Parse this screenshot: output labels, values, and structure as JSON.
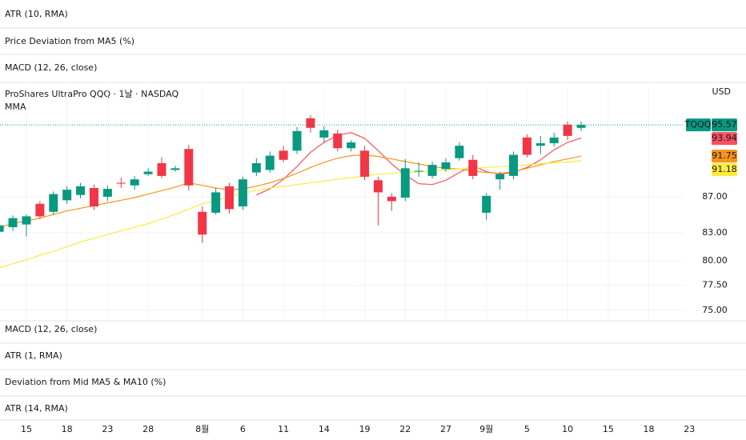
{
  "panes_above": [
    "ATR (10, RMA)",
    "Price Deviation from MA5 (%)",
    "MACD (12, 26, close)"
  ],
  "panes_below": [
    "MACD (12, 26, close)",
    "ATR (1, RMA)",
    "Deviation from Mid MA5 & MA10 (%)",
    "ATR (14, RMA)"
  ],
  "chart_data": {
    "type": "candlestick",
    "title": "ProShares UltraPro QQQ · 1날 · NASDAQ",
    "subtitle": "MMA",
    "currency": "USD",
    "symbol": "TQQQ",
    "x": [
      0,
      1,
      2,
      3,
      4,
      5,
      6,
      7,
      8,
      9,
      10,
      11,
      12,
      13,
      14,
      15,
      16,
      17,
      18,
      19,
      20,
      21,
      22,
      23,
      24,
      25,
      26,
      27,
      28,
      29,
      30,
      31,
      32,
      33,
      34,
      35,
      36,
      37,
      38,
      39,
      40,
      41,
      42,
      43
    ],
    "open": [
      83.1,
      83.6,
      83.9,
      86.2,
      85.3,
      86.6,
      87.2,
      88.0,
      87.0,
      88.6,
      88.3,
      89.6,
      90.9,
      90.1,
      92.6,
      85.3,
      85.2,
      88.2,
      85.9,
      89.8,
      90.1,
      92.4,
      92.4,
      96.4,
      94.0,
      94.5,
      92.7,
      92.4,
      88.9,
      87.0,
      86.9,
      89.9,
      89.4,
      90.2,
      91.5,
      91.3,
      85.2,
      89.0,
      89.4,
      94.0,
      93.0,
      93.3,
      95.6,
      95.2
    ],
    "high": [
      84.2,
      84.9,
      85.0,
      86.5,
      87.6,
      88.2,
      88.6,
      88.4,
      88.3,
      89.2,
      89.4,
      90.3,
      91.6,
      90.6,
      93.1,
      85.9,
      88.0,
      88.6,
      89.3,
      91.5,
      92.3,
      93.0,
      95.3,
      96.8,
      95.4,
      95.0,
      93.7,
      93.0,
      89.3,
      87.4,
      91.4,
      91.0,
      91.1,
      91.5,
      93.4,
      91.9,
      87.4,
      89.9,
      92.3,
      94.4,
      94.2,
      94.6,
      96.0,
      96.0
    ],
    "low": [
      82.8,
      83.2,
      82.6,
      84.5,
      85.0,
      86.2,
      86.8,
      85.5,
      86.5,
      88.0,
      87.8,
      89.4,
      89.1,
      89.9,
      87.7,
      81.9,
      85.0,
      85.1,
      85.5,
      89.4,
      89.8,
      91.0,
      92.0,
      94.6,
      93.4,
      92.3,
      92.3,
      88.9,
      83.8,
      85.4,
      86.5,
      89.3,
      89.1,
      89.9,
      91.2,
      89.0,
      84.4,
      87.8,
      89.0,
      91.6,
      92.0,
      92.9,
      93.7,
      94.8
    ],
    "close": [
      83.8,
      84.6,
      84.8,
      84.8,
      87.3,
      87.8,
      88.2,
      85.9,
      87.9,
      88.5,
      89.0,
      89.9,
      89.4,
      90.3,
      88.3,
      82.8,
      87.5,
      85.6,
      89.0,
      90.9,
      91.8,
      91.3,
      94.8,
      95.2,
      94.9,
      92.7,
      93.4,
      89.3,
      87.5,
      86.5,
      90.3,
      90.0,
      90.7,
      91.0,
      93.0,
      89.4,
      87.1,
      89.6,
      91.9,
      91.9,
      93.3,
      94.0,
      94.2,
      95.57
    ],
    "up_color": "#089981",
    "down_color": "#f23645",
    "series": [
      {
        "color": "#f7525f",
        "values": [
          null,
          null,
          null,
          null,
          null,
          null,
          null,
          null,
          null,
          null,
          null,
          null,
          null,
          null,
          null,
          null,
          null,
          null,
          null,
          87.2,
          87.9,
          89.0,
          90.5,
          92.2,
          93.4,
          94.3,
          94.6,
          93.9,
          92.4,
          90.8,
          89.5,
          88.5,
          88.4,
          88.9,
          89.8,
          90.6,
          89.9,
          89.6,
          89.8,
          90.4,
          91.3,
          92.5,
          93.4,
          93.94
        ]
      },
      {
        "color": "#f7931a",
        "values": [
          83.6,
          84.0,
          84.3,
          84.6,
          85.0,
          85.4,
          85.7,
          86.0,
          86.3,
          86.6,
          86.9,
          87.3,
          87.7,
          88.1,
          88.6,
          88.3,
          88.0,
          87.8,
          87.9,
          88.2,
          88.6,
          89.1,
          89.7,
          90.4,
          91.0,
          91.5,
          91.8,
          91.9,
          91.7,
          91.4,
          91.1,
          90.8,
          90.5,
          90.3,
          90.2,
          90.0,
          89.8,
          89.7,
          89.9,
          90.3,
          90.7,
          91.1,
          91.4,
          91.75
        ]
      },
      {
        "color": "#ffeb3b",
        "values": [
          79.3,
          79.7,
          80.1,
          80.6,
          81.0,
          81.5,
          82.0,
          82.4,
          82.8,
          83.2,
          83.6,
          84.0,
          84.5,
          85.0,
          85.6,
          86.2,
          86.6,
          87.0,
          87.4,
          87.7,
          88.0,
          88.2,
          88.4,
          88.6,
          88.8,
          89.0,
          89.2,
          89.4,
          89.6,
          89.7,
          89.8,
          89.9,
          90.0,
          90.1,
          90.2,
          90.3,
          90.4,
          90.5,
          90.6,
          90.7,
          90.85,
          90.95,
          91.05,
          91.18
        ]
      }
    ],
    "xlim": [
      0.05,
      52.7
    ],
    "xticks": [
      {
        "value": 2,
        "label": "15"
      },
      {
        "value": 5,
        "label": "18"
      },
      {
        "value": 8,
        "label": "23"
      },
      {
        "value": 11,
        "label": "28"
      },
      {
        "value": 15,
        "label": "8월"
      },
      {
        "value": 18,
        "label": "6"
      },
      {
        "value": 21,
        "label": "11"
      },
      {
        "value": 24,
        "label": "14"
      },
      {
        "value": 27,
        "label": "19"
      },
      {
        "value": 30,
        "label": "22"
      },
      {
        "value": 33,
        "label": "27"
      },
      {
        "value": 36,
        "label": "9월"
      },
      {
        "value": 39,
        "label": "5"
      },
      {
        "value": 42,
        "label": "10"
      },
      {
        "value": 45,
        "label": "15"
      },
      {
        "value": 48,
        "label": "18"
      },
      {
        "value": 51,
        "label": "23"
      }
    ],
    "ylim": [
      74.05,
      100.5
    ],
    "yticks": [
      {
        "value": 87,
        "label": "87.00"
      },
      {
        "value": 83,
        "label": "83.00"
      },
      {
        "value": 80,
        "label": "80.00"
      },
      {
        "value": 77.5,
        "label": "77.50"
      },
      {
        "value": 75,
        "label": "75.00"
      }
    ],
    "log_scale": true,
    "grid": true
  }
}
